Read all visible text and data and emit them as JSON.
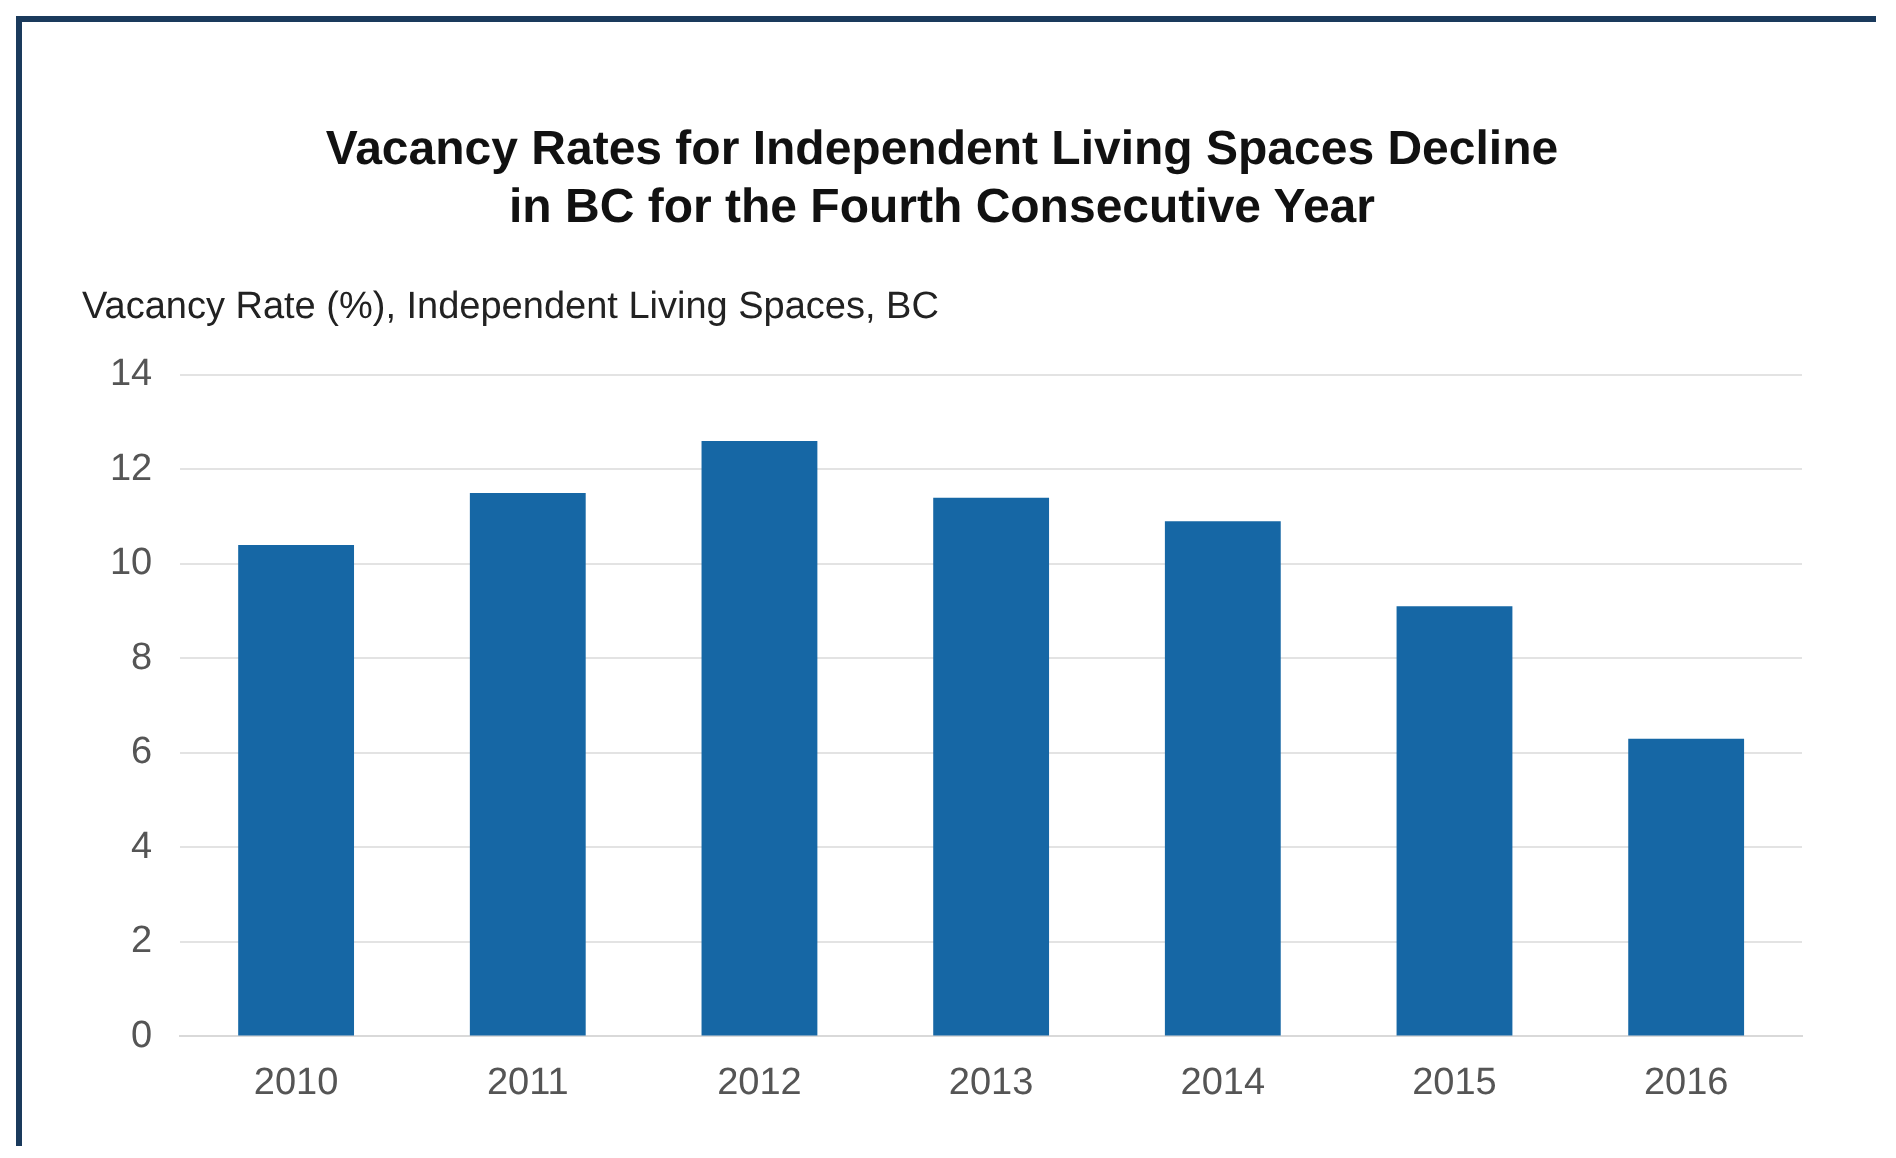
{
  "chart_data": {
    "type": "bar",
    "title": "Vacancy Rates for Independent Living Spaces Decline\nin BC for the Fourth Consecutive Year",
    "ylabel": "Vacancy Rate (%), Independent Living Spaces, BC",
    "categories": [
      "2010",
      "2011",
      "2012",
      "2013",
      "2014",
      "2015",
      "2016"
    ],
    "values": [
      10.4,
      11.5,
      12.6,
      11.4,
      10.9,
      9.1,
      6.3
    ],
    "color": "#1667a5",
    "ylim": [
      0,
      14
    ],
    "yticks": [
      0,
      2,
      4,
      6,
      8,
      10,
      12,
      14
    ],
    "grid": "y",
    "legend": false
  }
}
